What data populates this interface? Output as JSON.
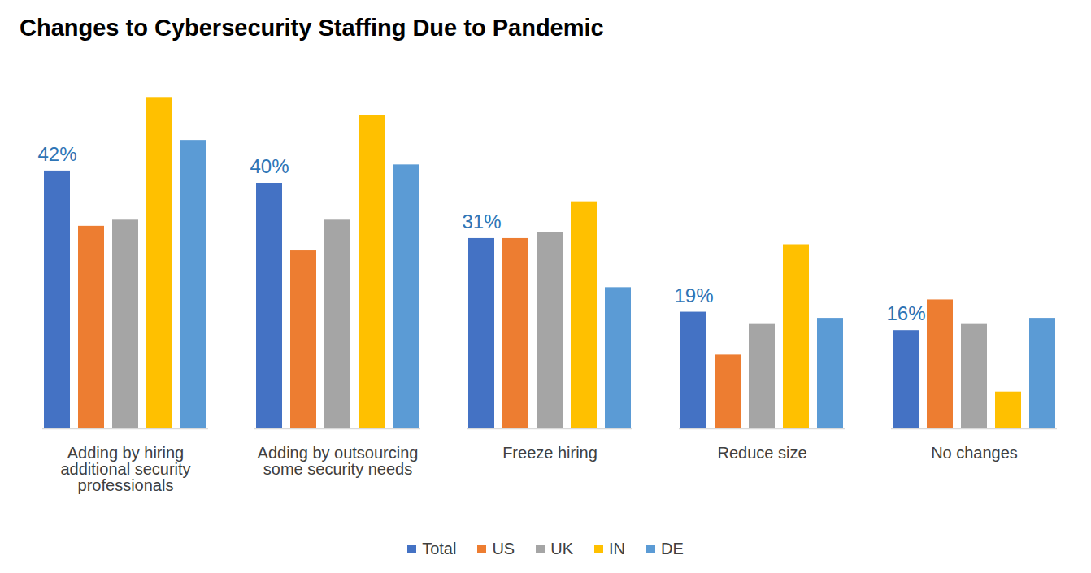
{
  "chart_data": {
    "type": "bar",
    "title": "Changes to Cybersecurity Staffing Due to Pandemic",
    "categories": [
      "Adding by hiring additional security professionals",
      "Adding by outsourcing some security needs",
      "Freeze hiring",
      "Reduce size",
      "No changes"
    ],
    "series": [
      {
        "name": "Total",
        "color": "#4472C4",
        "values": [
          42,
          40,
          31,
          19,
          16
        ],
        "value_labels": [
          "42%",
          "40%",
          "31%",
          "19%",
          "16%"
        ]
      },
      {
        "name": "US",
        "color": "#ED7D31",
        "values": [
          33,
          29,
          31,
          12,
          21
        ]
      },
      {
        "name": "UK",
        "color": "#A5A5A5",
        "values": [
          34,
          34,
          32,
          17,
          17
        ]
      },
      {
        "name": "IN",
        "color": "#FFC000",
        "values": [
          54,
          51,
          37,
          30,
          6
        ]
      },
      {
        "name": "DE",
        "color": "#5B9BD5",
        "values": [
          47,
          43,
          23,
          18,
          18
        ]
      }
    ],
    "ylim": [
      0,
      60
    ],
    "data_labels": true,
    "tick_labels": "x",
    "legend": "bottom"
  }
}
